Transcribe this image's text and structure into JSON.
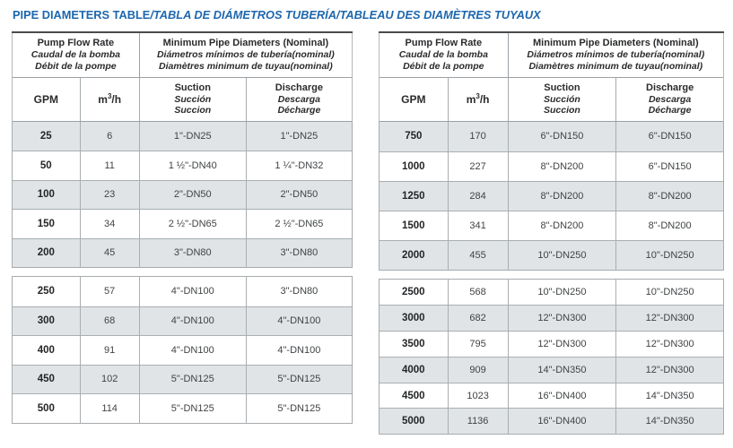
{
  "page_title": {
    "en": "PIPE DIAMETERS TABLE",
    "intl": "/TABLA DE DIÁMETROS TUBERÍA/TABLEAU DES DIAMÈTRES TUYAUX"
  },
  "colors": {
    "title_blue": "#1d67ae",
    "row_shade": "#e0e4e7",
    "border_light": "#a6abae",
    "border_dark": "#4a4b4d",
    "text_dark": "#232527"
  },
  "header": {
    "flow_group": [
      "Pump Flow Rate",
      "Caudal de la bomba",
      "Débit de la pompe"
    ],
    "diam_group": [
      "Minimum Pipe Diameters (Nominal)",
      "Diámetros mínimos de tubería(nominal)",
      "Diamètres minimum de tuyau(nominal)"
    ],
    "gpm": "GPM",
    "m3h": {
      "base": "m",
      "sup": "3",
      "rest": "/h"
    },
    "suction": [
      "Suction",
      "Succión",
      "Succion"
    ],
    "discharge": [
      "Discharge",
      "Descarga",
      "Décharge"
    ]
  },
  "tables": [
    {
      "sections": [
        {
          "first_shaded": true,
          "rows": [
            {
              "gpm": "25",
              "m3h": "6",
              "suction": "1\"-DN25",
              "discharge": "1\"-DN25"
            },
            {
              "gpm": "50",
              "m3h": "11",
              "suction": "1 ½\"-DN40",
              "discharge": "1 ¼\"-DN32"
            },
            {
              "gpm": "100",
              "m3h": "23",
              "suction": "2\"-DN50",
              "discharge": "2\"-DN50"
            },
            {
              "gpm": "150",
              "m3h": "34",
              "suction": "2 ½\"-DN65",
              "discharge": "2 ½\"-DN65"
            },
            {
              "gpm": "200",
              "m3h": "45",
              "suction": "3\"-DN80",
              "discharge": "3\"-DN80"
            }
          ]
        },
        {
          "first_shaded": false,
          "rows": [
            {
              "gpm": "250",
              "m3h": "57",
              "suction": "4\"-DN100",
              "discharge": "3\"-DN80"
            },
            {
              "gpm": "300",
              "m3h": "68",
              "suction": "4\"-DN100",
              "discharge": "4\"-DN100"
            },
            {
              "gpm": "400",
              "m3h": "91",
              "suction": "4\"-DN100",
              "discharge": "4\"-DN100"
            },
            {
              "gpm": "450",
              "m3h": "102",
              "suction": "5\"-DN125",
              "discharge": "5\"-DN125"
            },
            {
              "gpm": "500",
              "m3h": "114",
              "suction": "5\"-DN125",
              "discharge": "5\"-DN125"
            }
          ]
        }
      ]
    },
    {
      "sections": [
        {
          "first_shaded": true,
          "rows": [
            {
              "gpm": "750",
              "m3h": "170",
              "suction": "6\"-DN150",
              "discharge": "6\"-DN150"
            },
            {
              "gpm": "1000",
              "m3h": "227",
              "suction": "8\"-DN200",
              "discharge": "6\"-DN150"
            },
            {
              "gpm": "1250",
              "m3h": "284",
              "suction": "8\"-DN200",
              "discharge": "8\"-DN200"
            },
            {
              "gpm": "1500",
              "m3h": "341",
              "suction": "8\"-DN200",
              "discharge": "8\"-DN200"
            },
            {
              "gpm": "2000",
              "m3h": "455",
              "suction": "10\"-DN250",
              "discharge": "10\"-DN250"
            }
          ]
        },
        {
          "first_shaded": false,
          "rows": [
            {
              "gpm": "2500",
              "m3h": "568",
              "suction": "10\"-DN250",
              "discharge": "10\"-DN250"
            },
            {
              "gpm": "3000",
              "m3h": "682",
              "suction": "12\"-DN300",
              "discharge": "12\"-DN300"
            },
            {
              "gpm": "3500",
              "m3h": "795",
              "suction": "12\"-DN300",
              "discharge": "12\"-DN300"
            },
            {
              "gpm": "4000",
              "m3h": "909",
              "suction": "14\"-DN350",
              "discharge": "12\"-DN300"
            },
            {
              "gpm": "4500",
              "m3h": "1023",
              "suction": "16\"-DN400",
              "discharge": "14\"-DN350"
            },
            {
              "gpm": "5000",
              "m3h": "1136",
              "suction": "16\"-DN400",
              "discharge": "14\"-DN350"
            }
          ]
        }
      ]
    }
  ]
}
